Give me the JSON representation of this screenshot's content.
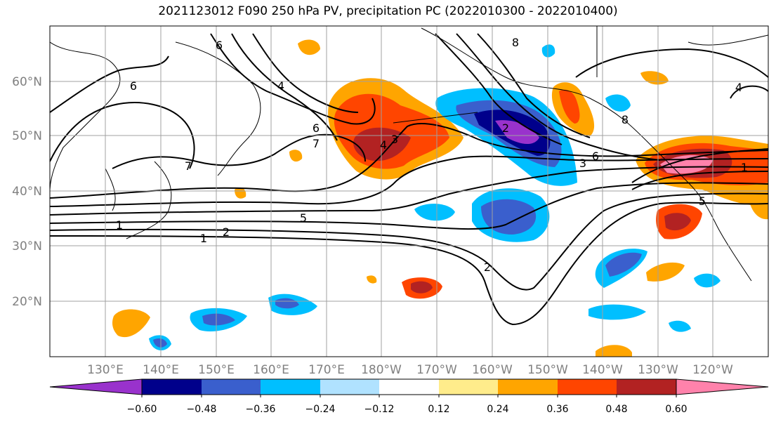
{
  "title": "2021123012 F090 250 hPa PV, precipitation PC (2022010300 - 2022010400)",
  "lat_ticks": [
    "60°N",
    "50°N",
    "40°N",
    "30°N",
    "20°N"
  ],
  "lon_ticks": [
    "130°E",
    "140°E",
    "150°E",
    "160°E",
    "170°E",
    "180°W",
    "170°W",
    "160°W",
    "150°W",
    "140°W",
    "130°W",
    "120°W"
  ],
  "colorbar": {
    "ticks": [
      "−0.60",
      "−0.48",
      "−0.36",
      "−0.24",
      "−0.12",
      "0.12",
      "0.24",
      "0.36",
      "0.48",
      "0.60"
    ],
    "colors": [
      "#9932CC",
      "#00008B",
      "#3A5FCD",
      "#00BFFF",
      "#B0E2FF",
      "#FFFFFF",
      "#FFEC8B",
      "#FFA500",
      "#FF4500",
      "#B22222",
      "#FF82AB"
    ]
  },
  "contour_labels": [
    "1",
    "2",
    "5",
    "6",
    "7",
    "6",
    "4",
    "3",
    "8",
    "2",
    "6",
    "5",
    "4",
    "1",
    "2",
    "3",
    "7",
    "8",
    "6",
    "4",
    "1"
  ]
}
